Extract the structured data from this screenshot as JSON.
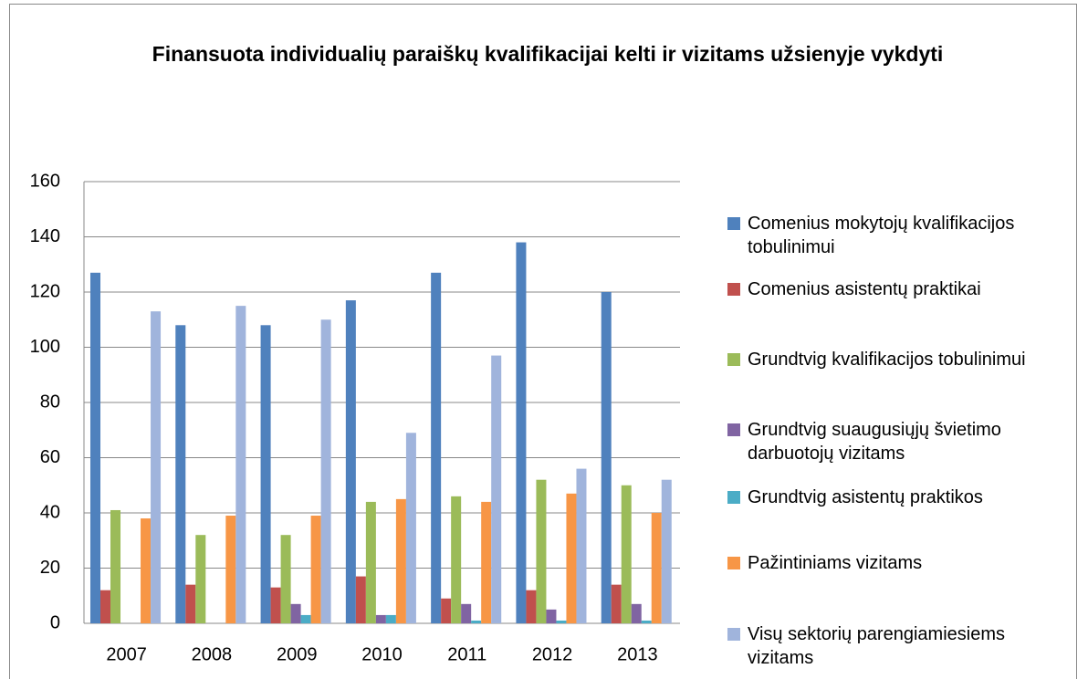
{
  "chart_data": {
    "type": "bar",
    "title": "Finansuota individualių paraiškų kvalifikacijai kelti ir vizitams užsienyje vykdyti",
    "categories": [
      "2007",
      "2008",
      "2009",
      "2010",
      "2011",
      "2012",
      "2013"
    ],
    "series": [
      {
        "name": "Comenius mokytojų kvalifikacijos tobulinimui",
        "color": "#4f81bd",
        "values": [
          127,
          108,
          108,
          117,
          127,
          138,
          120
        ]
      },
      {
        "name": "Comenius asistentų praktikai",
        "color": "#c0504d",
        "values": [
          12,
          14,
          13,
          17,
          9,
          12,
          14
        ]
      },
      {
        "name": "Grundtvig kvalifikacijos tobulinimui",
        "color": "#9bbb59",
        "values": [
          41,
          32,
          32,
          44,
          46,
          52,
          50
        ]
      },
      {
        "name": "Grundtvig suaugusiųjų švietimo darbuotojų vizitams",
        "color": "#8064a2",
        "values": [
          0,
          0,
          7,
          3,
          7,
          5,
          7
        ]
      },
      {
        "name": "Grundtvig asistentų praktikos",
        "color": "#4bacc6",
        "values": [
          0,
          0,
          3,
          3,
          1,
          1,
          1
        ]
      },
      {
        "name": "Pažintiniams vizitams",
        "color": "#f79646",
        "values": [
          38,
          39,
          39,
          45,
          44,
          47,
          40
        ]
      },
      {
        "name": "Visų sektorių parengiamiesiems vizitams",
        "color": "#a0b4dc",
        "values": [
          113,
          115,
          110,
          69,
          97,
          56,
          52
        ]
      }
    ],
    "ylim": [
      0,
      160
    ],
    "yticks": [
      0,
      20,
      40,
      60,
      80,
      100,
      120,
      140,
      160
    ],
    "grid": true,
    "legend": "right"
  }
}
